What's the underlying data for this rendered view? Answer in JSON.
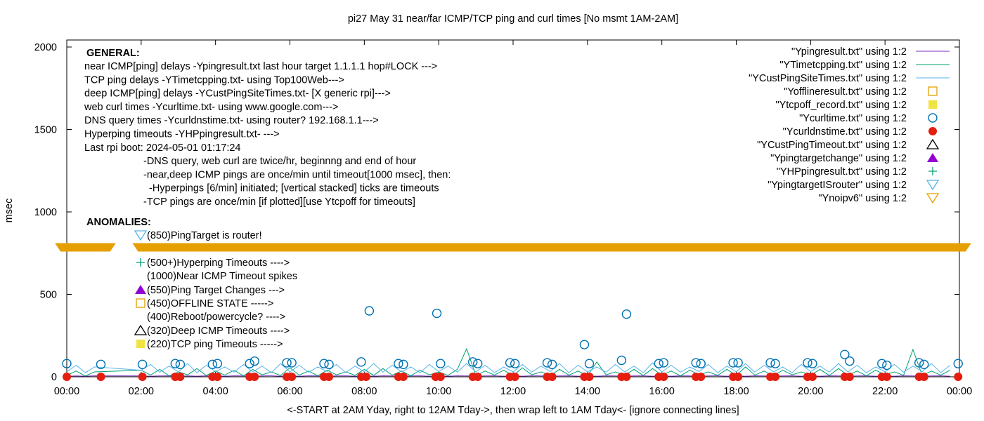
{
  "chart_data": {
    "type": "line",
    "title": "pi27 May 31  near/far ICMP/TCP ping and curl times [No msmt 1AM-2AM]",
    "xlabel": "<-START at 2AM Yday, right to 12AM Tday->, then wrap left to 1AM Tday<- [ignore connecting lines]",
    "ylabel": "msec",
    "xlim": [
      "00:00",
      "24:00"
    ],
    "ylim": [
      0,
      2000
    ],
    "x_ticks": [
      "00:00",
      "02:00",
      "04:00",
      "06:00",
      "08:00",
      "10:00",
      "12:00",
      "14:00",
      "16:00",
      "18:00",
      "20:00",
      "22:00",
      "00:00"
    ],
    "y_ticks": [
      0,
      500,
      1000,
      1500,
      2000
    ],
    "grid": false,
    "legend_position": "top-right",
    "line_interval_minutes": 15,
    "series": [
      {
        "name": "\"Ypingresult.txt\" using 1:2",
        "color": "#7b2fbf",
        "style": "line",
        "values": [
          4,
          5,
          4,
          6,
          null,
          null,
          null,
          null,
          5,
          4,
          5,
          6,
          4,
          5,
          4,
          6,
          5,
          4,
          6,
          5,
          4,
          5,
          6,
          4,
          5,
          4,
          6,
          5,
          4,
          5,
          6,
          4,
          5,
          4,
          6,
          5,
          4,
          5,
          6,
          4,
          5,
          4,
          6,
          5,
          4,
          5,
          6,
          4,
          5,
          4,
          6,
          5,
          4,
          5,
          6,
          4,
          5,
          4,
          6,
          5,
          4,
          5,
          6,
          4,
          5,
          4,
          6,
          5,
          4,
          5,
          6,
          4,
          5,
          4,
          6,
          5,
          4,
          5,
          6,
          4,
          5,
          4,
          6,
          5,
          4,
          5,
          6,
          4,
          5,
          4,
          6,
          5,
          4,
          5,
          6,
          4
        ]
      },
      {
        "name": "\"YTimetcpping.txt\" using 1:2",
        "color": "#009e73",
        "style": "line",
        "values": [
          8,
          35,
          5,
          30,
          null,
          null,
          null,
          null,
          40,
          10,
          45,
          6,
          30,
          12,
          50,
          8,
          35,
          10,
          40,
          5,
          45,
          12,
          30,
          8,
          55,
          10,
          35,
          6,
          40,
          12,
          30,
          9,
          45,
          8,
          50,
          10,
          35,
          6,
          40,
          12,
          30,
          9,
          45,
          170,
          8,
          35,
          10,
          40,
          6,
          55,
          12,
          30,
          8,
          45,
          10,
          35,
          6,
          90,
          12,
          30,
          9,
          45,
          8,
          50,
          10,
          35,
          6,
          40,
          12,
          30,
          9,
          45,
          8,
          60,
          10,
          35,
          6,
          40,
          12,
          30,
          9,
          45,
          8,
          50,
          10,
          35,
          6,
          40,
          12,
          30,
          9,
          165,
          8,
          35,
          10,
          40
        ]
      },
      {
        "name": "\"YCustPingSiteTimes.txt\" using 1:2",
        "color": "#56b4e9",
        "style": "line",
        "values": [
          30,
          70,
          25,
          60,
          null,
          null,
          null,
          null,
          40,
          75,
          28,
          65,
          30,
          80,
          25,
          70,
          32,
          60,
          28,
          75,
          30,
          65,
          25,
          80,
          30,
          70,
          28,
          60,
          32,
          75,
          25,
          65,
          30,
          80,
          28,
          70,
          30,
          60,
          25,
          75,
          32,
          65,
          28,
          80,
          30,
          70,
          25,
          60,
          30,
          75,
          28,
          65,
          32,
          80,
          25,
          70,
          30,
          60,
          28,
          75,
          30,
          65,
          25,
          85,
          30,
          70,
          28,
          60,
          32,
          75,
          25,
          65,
          30,
          80,
          28,
          70,
          30,
          60,
          25,
          75,
          32,
          65,
          28,
          80,
          30,
          70,
          25,
          60,
          30,
          75,
          28,
          65,
          32,
          80,
          25,
          70
        ]
      },
      {
        "name": "\"Yofflineresult.txt\" using 1:2",
        "color": "#e69f00",
        "style": "open-square",
        "points": []
      },
      {
        "name": "\"Ytcpoff_record.txt\" using 1:2",
        "color": "#f0e442",
        "style": "filled-square",
        "points": []
      },
      {
        "name": "\"Ycurltime.txt\" using 1:2",
        "color": "#0072b2",
        "style": "open-circle",
        "points": [
          [
            "00:00",
            80
          ],
          [
            "00:55",
            75
          ],
          [
            "02:02",
            75
          ],
          [
            "02:55",
            80
          ],
          [
            "03:03",
            75
          ],
          [
            "03:55",
            75
          ],
          [
            "04:03",
            80
          ],
          [
            "04:55",
            80
          ],
          [
            "05:03",
            95
          ],
          [
            "05:55",
            85
          ],
          [
            "06:03",
            85
          ],
          [
            "06:55",
            80
          ],
          [
            "07:03",
            75
          ],
          [
            "07:55",
            90
          ],
          [
            "08:08",
            400
          ],
          [
            "08:55",
            80
          ],
          [
            "09:03",
            75
          ],
          [
            "09:57",
            385
          ],
          [
            "10:03",
            80
          ],
          [
            "10:55",
            90
          ],
          [
            "11:03",
            80
          ],
          [
            "11:55",
            85
          ],
          [
            "12:03",
            80
          ],
          [
            "12:55",
            85
          ],
          [
            "13:03",
            75
          ],
          [
            "13:55",
            195
          ],
          [
            "14:03",
            80
          ],
          [
            "14:55",
            100
          ],
          [
            "15:03",
            380
          ],
          [
            "15:55",
            80
          ],
          [
            "16:03",
            85
          ],
          [
            "16:55",
            85
          ],
          [
            "17:03",
            80
          ],
          [
            "17:55",
            85
          ],
          [
            "18:03",
            85
          ],
          [
            "18:55",
            85
          ],
          [
            "19:03",
            80
          ],
          [
            "19:55",
            85
          ],
          [
            "20:03",
            80
          ],
          [
            "20:55",
            135
          ],
          [
            "21:03",
            95
          ],
          [
            "21:55",
            80
          ],
          [
            "22:03",
            70
          ],
          [
            "22:55",
            85
          ],
          [
            "23:03",
            75
          ],
          [
            "23:58",
            80
          ]
        ]
      },
      {
        "name": "\"Ycurldnstime.txt\" using 1:2",
        "color": "#e51e10",
        "style": "filled-circle",
        "points": [
          [
            "00:00",
            0
          ],
          [
            "00:55",
            0
          ],
          [
            "02:02",
            0
          ],
          [
            "02:55",
            0
          ],
          [
            "03:03",
            0
          ],
          [
            "03:55",
            0
          ],
          [
            "04:03",
            0
          ],
          [
            "04:55",
            0
          ],
          [
            "05:03",
            0
          ],
          [
            "05:55",
            0
          ],
          [
            "06:03",
            0
          ],
          [
            "06:55",
            0
          ],
          [
            "07:03",
            0
          ],
          [
            "07:55",
            0
          ],
          [
            "08:03",
            0
          ],
          [
            "08:55",
            0
          ],
          [
            "09:03",
            0
          ],
          [
            "09:55",
            0
          ],
          [
            "10:03",
            0
          ],
          [
            "10:55",
            0
          ],
          [
            "11:03",
            0
          ],
          [
            "11:55",
            0
          ],
          [
            "12:03",
            0
          ],
          [
            "12:55",
            0
          ],
          [
            "13:03",
            0
          ],
          [
            "13:55",
            0
          ],
          [
            "14:03",
            0
          ],
          [
            "14:55",
            0
          ],
          [
            "15:03",
            0
          ],
          [
            "15:55",
            0
          ],
          [
            "16:03",
            0
          ],
          [
            "16:55",
            0
          ],
          [
            "17:03",
            0
          ],
          [
            "17:55",
            0
          ],
          [
            "18:03",
            0
          ],
          [
            "18:55",
            0
          ],
          [
            "19:03",
            0
          ],
          [
            "19:55",
            0
          ],
          [
            "20:03",
            0
          ],
          [
            "20:55",
            0
          ],
          [
            "21:03",
            0
          ],
          [
            "21:55",
            0
          ],
          [
            "22:03",
            0
          ],
          [
            "22:55",
            0
          ],
          [
            "23:03",
            0
          ],
          [
            "23:58",
            0
          ]
        ]
      },
      {
        "name": "\"YCustPingTimeout.txt\" using 1:2",
        "color": "#000000",
        "style": "open-triangle",
        "points": []
      },
      {
        "name": "\"Ypingtargetchange\" using 1:2",
        "color": "#9400d3",
        "style": "filled-triangle",
        "points": []
      },
      {
        "name": "\"YHPpingresult.txt\" using 1:2",
        "color": "#009e73",
        "style": "plus",
        "points": []
      },
      {
        "name": "\"YpingtargetISrouter\" using 1:2",
        "color": "#56b4e9",
        "style": "open-down-triangle",
        "points": []
      },
      {
        "name": "\"Ynoipv6\" using 1:2",
        "color": "#e69f00",
        "style": "filled-down-triangle-band",
        "value": 785,
        "ranges": [
          [
            "-00:10",
            "01:10"
          ],
          [
            "01:55",
            "24:10"
          ]
        ]
      }
    ],
    "annotations": {
      "general_heading": "GENERAL:",
      "general": [
        "near ICMP[ping] delays -Ypingresult.txt last hour target 1.1.1.1 hop#LOCK --->",
        "TCP ping delays -YTimetcpping.txt- using Top100Web--->",
        "deep ICMP[ping] delays -YCustPingSiteTimes.txt- [X generic rpi]--->",
        "web curl times -Ycurltime.txt- using www.google.com--->",
        "DNS query times -Ycurldnstime.txt- using router? 192.168.1.1--->",
        "Hyperping timeouts -YHPpingresult.txt- --->",
        "Last rpi boot: 2024-05-01 01:17:24"
      ],
      "notes": [
        "-DNS query, web curl are twice/hr, beginnng and end of hour",
        "-near,deep ICMP pings are once/min until timeout[1000 msec], then:",
        "-Hyperpings [6/min] initiated; [vertical stacked] ticks are timeouts",
        "-TCP pings are once/min [if plotted][use Ytcpoff for timeouts]"
      ],
      "anomalies_heading": "ANOMALIES:",
      "anomalies": [
        {
          "text": "(850)PingTarget is router!",
          "marker": "open-down-triangle",
          "color": "#56b4e9"
        },
        {
          "text": "(500+)Hyperping Timeouts ---->",
          "marker": "plus",
          "color": "#009e73"
        },
        {
          "text": "(1000)Near ICMP Timeout spikes",
          "marker": "none",
          "color": "#7b2fbf"
        },
        {
          "text": "(550)Ping Target Changes --->",
          "marker": "filled-triangle",
          "color": "#9400d3"
        },
        {
          "text": "(450)OFFLINE STATE ----->",
          "marker": "open-square",
          "color": "#e69f00"
        },
        {
          "text": "(400)Reboot/powercycle? ---->",
          "marker": "none",
          "color": "#000000"
        },
        {
          "text": "(320)Deep ICMP Timeouts ---->",
          "marker": "open-triangle",
          "color": "#000000"
        },
        {
          "text": "(220)TCP ping Timeouts ----->",
          "marker": "filled-square",
          "color": "#f0e442"
        }
      ]
    }
  }
}
